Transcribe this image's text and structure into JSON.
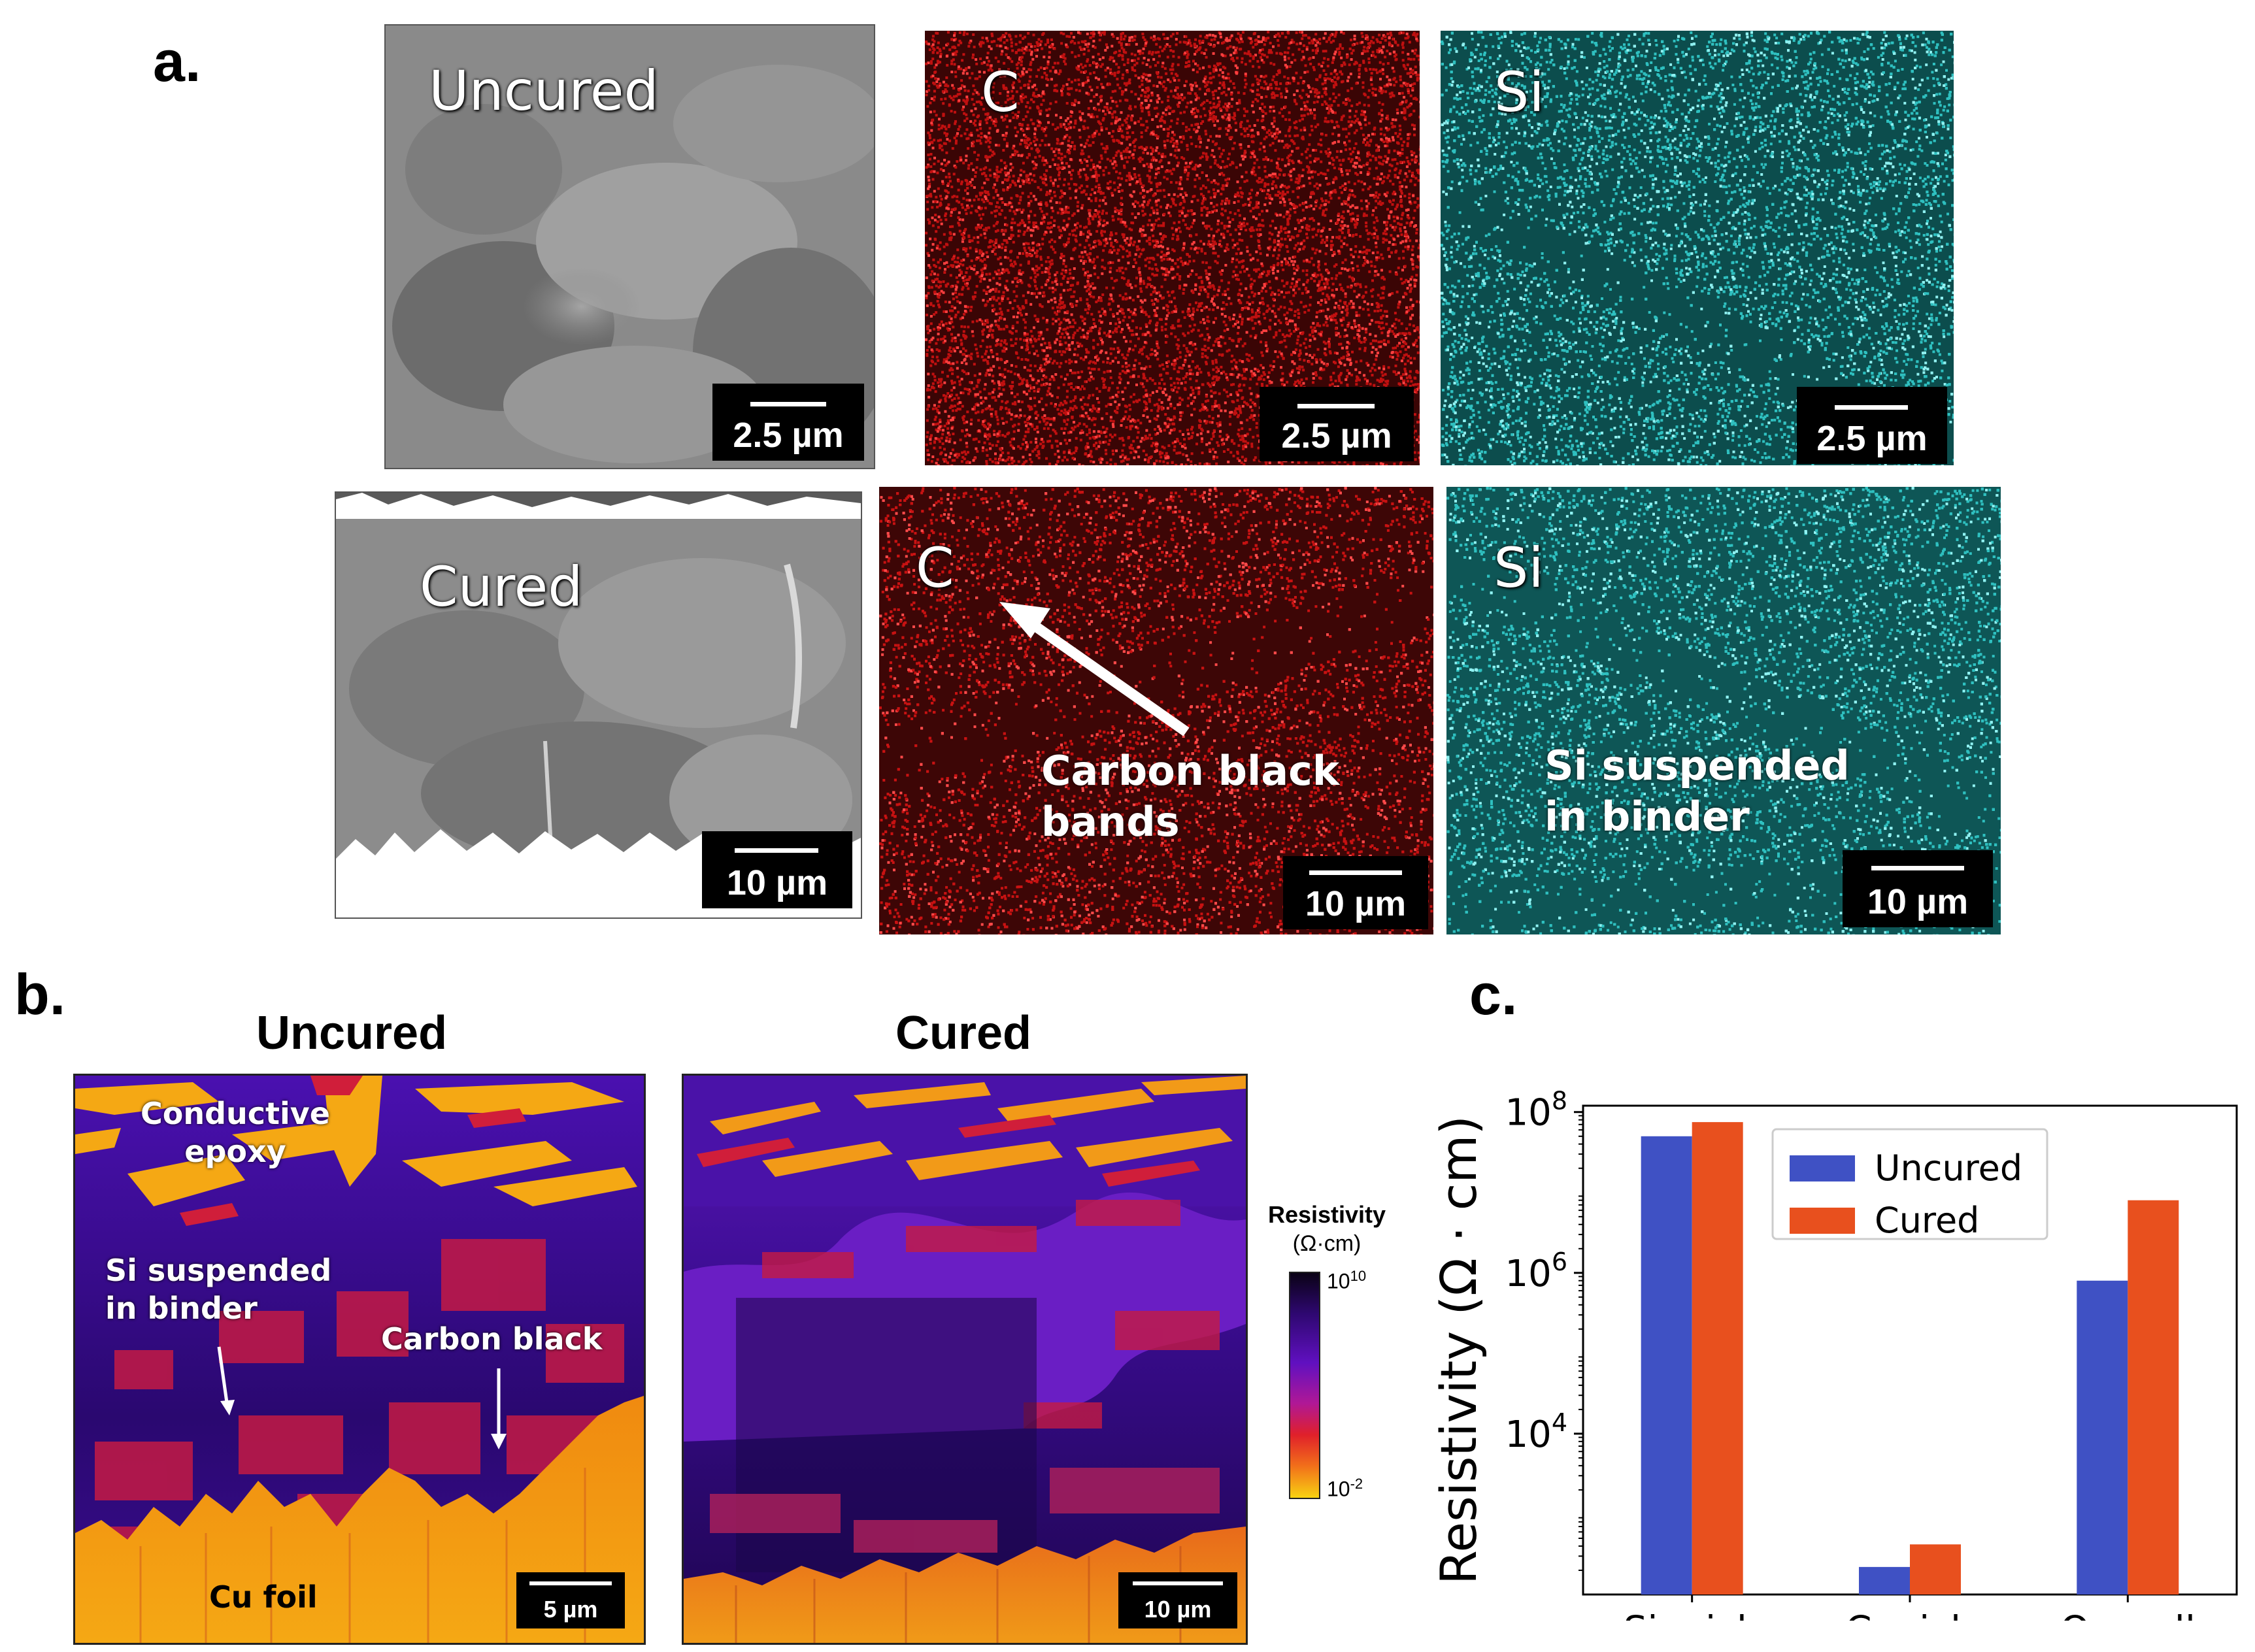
{
  "panel_a": {
    "letter": "a.",
    "top_row": [
      {
        "label": "Uncured",
        "scale": "2.5 µm"
      },
      {
        "label": "C",
        "scale": "2.5 µm"
      },
      {
        "label": "Si",
        "scale": "2.5 µm"
      }
    ],
    "bottom_row": [
      {
        "label": "Cured",
        "scale": "10 µm"
      },
      {
        "label": "C",
        "scale": "10 µm",
        "annotation_line1": "Carbon black",
        "annotation_line2": "bands"
      },
      {
        "label": "Si",
        "scale": "10 µm",
        "annotation_line1": "Si suspended",
        "annotation_line2": "in binder"
      }
    ]
  },
  "panel_b": {
    "letter": "b.",
    "left_title": "Uncured",
    "right_title": "Cured",
    "left_annotations": {
      "epoxy_line1": "Conductive",
      "epoxy_line2": "epoxy",
      "si_line1": "Si suspended",
      "si_line2": "in binder",
      "carbon": "Carbon black",
      "foil": "Cu foil"
    },
    "left_scale": "5 µm",
    "right_scale": "10 µm",
    "colorbar": {
      "title": "Resistivity",
      "unit": "(Ω·cm)",
      "tick_high_base": "10",
      "tick_high_exp": "10",
      "tick_low_base": "10",
      "tick_low_exp": "-2"
    }
  },
  "panel_c": {
    "letter": "c.",
    "ylabel": "Resistivity (Ω · cm)"
  },
  "colors": {
    "uncured": "#3f51c4",
    "cured": "#e8501e",
    "edx_carbon": "#d01010",
    "edx_silicon": "#1fb8b8"
  },
  "chart_data": {
    "type": "bar",
    "scale": "log",
    "categories": [
      "Si−rich",
      "C−rich",
      "Overall"
    ],
    "series": [
      {
        "name": "Uncured",
        "values": [
          50000000,
          220,
          800000
        ]
      },
      {
        "name": "Cured",
        "values": [
          75000000,
          420,
          8000000
        ]
      }
    ],
    "ylim": [
      100,
      120000000
    ],
    "yticks": [
      {
        "value": 10000,
        "base": "10",
        "exp": "4"
      },
      {
        "value": 1000000,
        "base": "10",
        "exp": "6"
      },
      {
        "value": 100000000,
        "base": "10",
        "exp": "8"
      }
    ],
    "legend_position": "top-center"
  }
}
